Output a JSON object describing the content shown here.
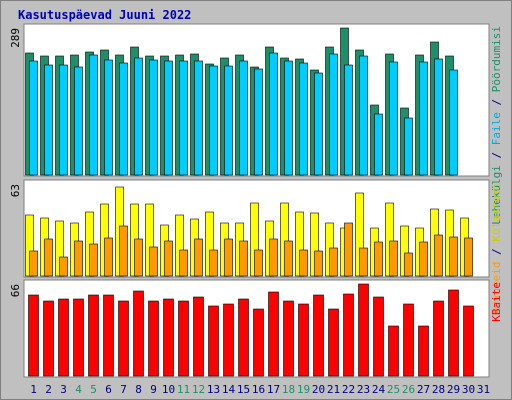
{
  "title": "Kasutuspäevad Juuni 2022",
  "colors": {
    "background": "#c0c0c0",
    "plot_background": "#ffffff",
    "border": "#808080",
    "title": "#0000bb",
    "pages": "#1f8f6a",
    "files": "#00ccff",
    "visits": "#ffff00",
    "sites": "#ff9900",
    "kbytes": "#ff0000",
    "axis_blue": "#0000bb",
    "weekend": "#1f8f6a",
    "weekday": "#000080"
  },
  "chart_data": [
    {
      "type": "bar",
      "panel": "top",
      "ymax_label": "289",
      "right_legend": [
        {
          "text": "Pöördumisi",
          "color": "#1f8f6a"
        },
        {
          "text": " / ",
          "color": "#000080"
        },
        {
          "text": "Faile",
          "color": "#00aadd"
        },
        {
          "text": " / ",
          "color": "#000080"
        },
        {
          "text": "Lehekülgi",
          "color": "#1f8f6a"
        }
      ],
      "ylim": [
        0,
        289
      ],
      "categories": [
        "1",
        "2",
        "3",
        "4",
        "5",
        "6",
        "7",
        "8",
        "9",
        "10",
        "11",
        "12",
        "13",
        "14",
        "15",
        "16",
        "17",
        "18",
        "19",
        "20",
        "21",
        "22",
        "23",
        "24",
        "25",
        "26",
        "27",
        "28",
        "29",
        "30",
        "31"
      ],
      "series": [
        {
          "name": "Pöördumisi",
          "color": "#1f8f6a",
          "values": [
            240,
            233,
            233,
            235,
            242,
            246,
            235,
            252,
            233,
            233,
            235,
            237,
            219,
            231,
            235,
            212,
            252,
            231,
            229,
            206,
            252,
            289,
            246,
            137,
            237,
            131,
            235,
            262,
            233,
            null,
            null
          ]
        },
        {
          "name": "Faile",
          "color": "#00ccff",
          "values": [
            224,
            216,
            216,
            212,
            235,
            226,
            220,
            231,
            226,
            224,
            224,
            224,
            214,
            214,
            224,
            208,
            240,
            224,
            220,
            201,
            238,
            216,
            233,
            120,
            222,
            113,
            222,
            229,
            206,
            null,
            null
          ]
        }
      ]
    },
    {
      "type": "bar",
      "panel": "middle",
      "ymax_label": "63",
      "right_legend": [
        {
          "text": "Külastusi",
          "color": "#cccc00"
        },
        {
          "text": " / ",
          "color": "#000080"
        },
        {
          "text": "Arvuteid",
          "color": "#ff9900"
        }
      ],
      "ylim": [
        0,
        63
      ],
      "categories": [
        "1",
        "2",
        "3",
        "4",
        "5",
        "6",
        "7",
        "8",
        "9",
        "10",
        "11",
        "12",
        "13",
        "14",
        "15",
        "16",
        "17",
        "18",
        "19",
        "20",
        "21",
        "22",
        "23",
        "24",
        "25",
        "26",
        "27",
        "28",
        "29",
        "30",
        "31"
      ],
      "series": [
        {
          "name": "Külastusi",
          "color": "#ffff00",
          "values": [
            42,
            40,
            38,
            36,
            44,
            49,
            61,
            49,
            49,
            35,
            42,
            39,
            44,
            36,
            36,
            50,
            38,
            50,
            44,
            43,
            36,
            33,
            57,
            33,
            50,
            34,
            33,
            46,
            45,
            40,
            null
          ]
        },
        {
          "name": "Arvuteid",
          "color": "#ff9900",
          "values": [
            17,
            25,
            13,
            24,
            22,
            26,
            34,
            25,
            20,
            24,
            18,
            25,
            18,
            25,
            24,
            18,
            25,
            24,
            18,
            17,
            19,
            36,
            19,
            23,
            24,
            16,
            23,
            28,
            27,
            26,
            null
          ]
        }
      ]
    },
    {
      "type": "bar",
      "panel": "bottom",
      "ymax_label": "66",
      "right_legend": [
        {
          "text": "KBaite",
          "color": "#ff0000"
        }
      ],
      "ylim": [
        0,
        66
      ],
      "categories": [
        "1",
        "2",
        "3",
        "4",
        "5",
        "6",
        "7",
        "8",
        "9",
        "10",
        "11",
        "12",
        "13",
        "14",
        "15",
        "16",
        "17",
        "18",
        "19",
        "20",
        "21",
        "22",
        "23",
        "24",
        "25",
        "26",
        "27",
        "28",
        "29",
        "30",
        "31"
      ],
      "series": [
        {
          "name": "KBaite",
          "color": "#ff0000",
          "values": [
            58,
            54,
            55,
            55,
            58,
            58,
            54,
            61,
            54,
            55,
            54,
            57,
            50,
            52,
            55,
            48,
            60,
            54,
            52,
            58,
            48,
            59,
            66,
            57,
            36,
            52,
            36,
            54,
            62,
            50,
            null
          ]
        }
      ]
    }
  ],
  "weekend_days": [
    4,
    5,
    11,
    12,
    18,
    19,
    25,
    26
  ]
}
